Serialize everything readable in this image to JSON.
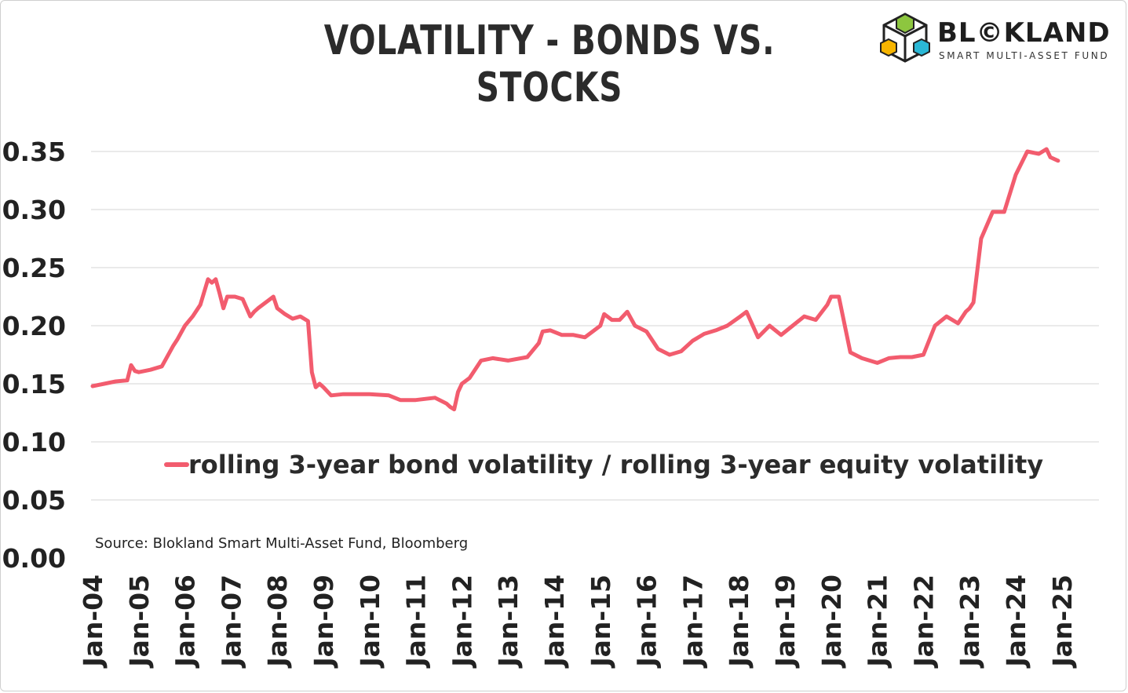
{
  "header": {
    "title": "VOLATILITY - BONDS VS. STOCKS"
  },
  "logo": {
    "name": "BL©KLAND",
    "subtitle": "SMART MULTI-ASSET FUND",
    "cube_colors": [
      "#8dc63f",
      "#f7b500",
      "#2bb8d6"
    ]
  },
  "source": "Source: Blokland Smart Multi-Asset Fund, Bloomberg",
  "colors": {
    "series": "#f25c6e",
    "grid": "#d4d4d4"
  },
  "chart_data": {
    "type": "line",
    "title": "VOLATILITY - BONDS VS. STOCKS",
    "xlabel": "",
    "ylabel": "",
    "ylim": [
      0,
      0.35
    ],
    "yticks": [
      "0.00",
      "0.05",
      "0.10",
      "0.15",
      "0.20",
      "0.25",
      "0.30",
      "0.35"
    ],
    "xticks": [
      "Jan-04",
      "Jan-05",
      "Jan-06",
      "Jan-07",
      "Jan-08",
      "Jan-09",
      "Jan-10",
      "Jan-11",
      "Jan-12",
      "Jan-13",
      "Jan-14",
      "Jan-15",
      "Jan-16",
      "Jan-17",
      "Jan-18",
      "Jan-19",
      "Jan-20",
      "Jan-21",
      "Jan-22",
      "Jan-23",
      "Jan-24",
      "Jan-25"
    ],
    "grid": true,
    "legend": "center",
    "series": [
      {
        "name": "rolling 3-year bond volatility / rolling 3-year equity volatility",
        "color": "#f25c6e",
        "x": [
          "2004-01",
          "2004-04",
          "2004-07",
          "2004-10",
          "2004-11",
          "2004-12",
          "2005-01",
          "2005-04",
          "2005-07",
          "2005-10",
          "2005-11",
          "2006-01",
          "2006-03",
          "2006-05",
          "2006-07",
          "2006-08",
          "2006-09",
          "2006-10",
          "2006-11",
          "2006-12",
          "2007-02",
          "2007-04",
          "2007-06",
          "2007-07",
          "2007-08",
          "2007-10",
          "2007-12",
          "2008-01",
          "2008-03",
          "2008-05",
          "2008-07",
          "2008-09",
          "2008-10",
          "2008-11",
          "2008-12",
          "2009-01",
          "2009-03",
          "2009-06",
          "2009-09",
          "2010-01",
          "2010-06",
          "2010-09",
          "2011-01",
          "2011-06",
          "2011-09",
          "2011-10",
          "2011-11",
          "2011-12",
          "2012-01",
          "2012-03",
          "2012-06",
          "2012-09",
          "2013-01",
          "2013-06",
          "2013-09",
          "2013-10",
          "2013-12",
          "2014-03",
          "2014-06",
          "2014-09",
          "2015-01",
          "2015-02",
          "2015-04",
          "2015-06",
          "2015-08",
          "2015-10",
          "2016-01",
          "2016-04",
          "2016-07",
          "2016-10",
          "2017-01",
          "2017-04",
          "2017-07",
          "2017-10",
          "2018-01",
          "2018-03",
          "2018-06",
          "2018-09",
          "2018-12",
          "2019-03",
          "2019-06",
          "2019-09",
          "2019-12",
          "2020-01",
          "2020-03",
          "2020-06",
          "2020-09",
          "2021-01",
          "2021-04",
          "2021-07",
          "2021-10",
          "2022-01",
          "2022-04",
          "2022-07",
          "2022-10",
          "2022-12",
          "2023-01",
          "2023-02",
          "2023-04",
          "2023-07",
          "2023-10",
          "2024-01",
          "2024-04",
          "2024-07",
          "2024-09",
          "2024-10",
          "2024-12"
        ],
        "values": [
          0.148,
          0.15,
          0.152,
          0.153,
          0.166,
          0.161,
          0.16,
          0.162,
          0.165,
          0.183,
          0.188,
          0.2,
          0.208,
          0.218,
          0.24,
          0.237,
          0.24,
          0.228,
          0.215,
          0.225,
          0.225,
          0.223,
          0.208,
          0.212,
          0.215,
          0.22,
          0.225,
          0.215,
          0.21,
          0.206,
          0.208,
          0.204,
          0.16,
          0.147,
          0.15,
          0.147,
          0.14,
          0.141,
          0.141,
          0.141,
          0.14,
          0.136,
          0.136,
          0.138,
          0.133,
          0.13,
          0.128,
          0.143,
          0.15,
          0.155,
          0.17,
          0.172,
          0.17,
          0.173,
          0.185,
          0.195,
          0.196,
          0.192,
          0.192,
          0.19,
          0.2,
          0.21,
          0.205,
          0.205,
          0.212,
          0.2,
          0.195,
          0.18,
          0.175,
          0.178,
          0.187,
          0.193,
          0.196,
          0.2,
          0.207,
          0.212,
          0.19,
          0.2,
          0.192,
          0.2,
          0.208,
          0.205,
          0.218,
          0.225,
          0.225,
          0.177,
          0.172,
          0.168,
          0.172,
          0.173,
          0.173,
          0.175,
          0.2,
          0.208,
          0.202,
          0.212,
          0.215,
          0.22,
          0.275,
          0.298,
          0.298,
          0.33,
          0.35,
          0.348,
          0.352,
          0.345,
          0.342
        ]
      }
    ]
  }
}
